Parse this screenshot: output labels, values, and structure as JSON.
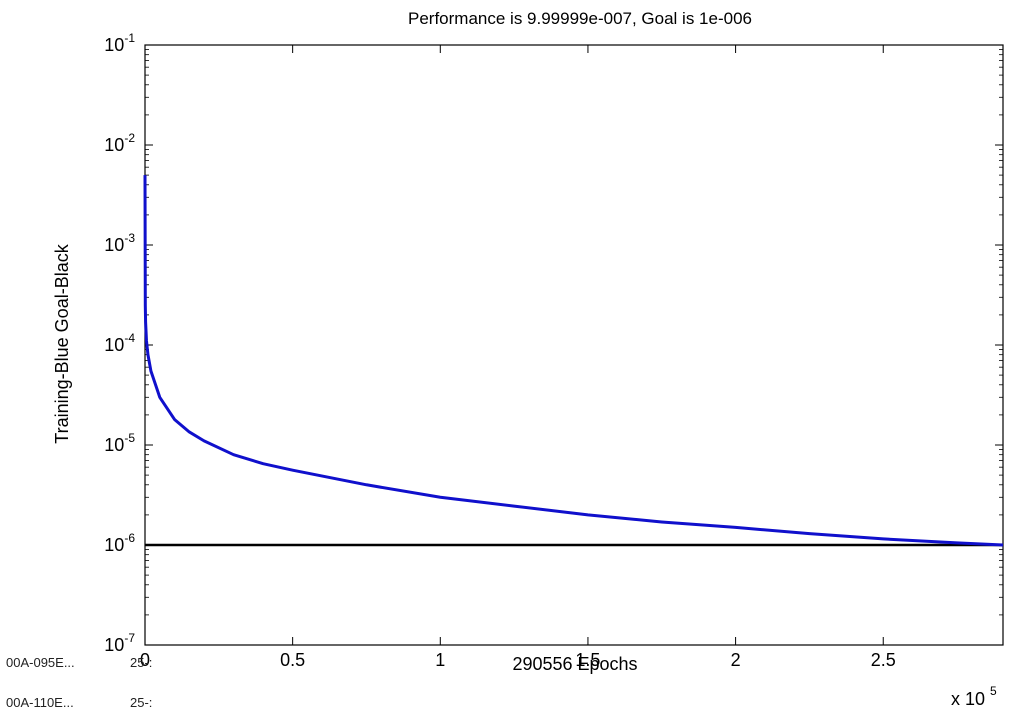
{
  "window": {
    "overlay_col1": [
      "00A-095E...",
      "00A-110E..."
    ],
    "overlay_col2": [
      "25-:",
      "25-:"
    ]
  },
  "chart_data": {
    "type": "line",
    "title": "Performance is 9.99999e-007, Goal is 1e-006",
    "xlabel": "290556 Epochs",
    "ylabel": "Training-Blue  Goal-Black",
    "x_scale_multiplier": {
      "base": "x 10",
      "exponent": "5"
    },
    "xlim": [
      0,
      2.90556
    ],
    "ylim": [
      1e-07,
      0.1
    ],
    "y_scale": "log",
    "grid": false,
    "x_ticks": [
      {
        "value": 0,
        "label": "0"
      },
      {
        "value": 0.5,
        "label": "0.5"
      },
      {
        "value": 1,
        "label": "1"
      },
      {
        "value": 1.5,
        "label": "1.5"
      },
      {
        "value": 2,
        "label": "2"
      },
      {
        "value": 2.5,
        "label": "2.5"
      }
    ],
    "y_ticks": [
      {
        "value": 1e-07,
        "base": "10",
        "exp": "-7"
      },
      {
        "value": 1e-06,
        "base": "10",
        "exp": "-6"
      },
      {
        "value": 1e-05,
        "base": "10",
        "exp": "-5"
      },
      {
        "value": 0.0001,
        "base": "10",
        "exp": "-4"
      },
      {
        "value": 0.001,
        "base": "10",
        "exp": "-3"
      },
      {
        "value": 0.01,
        "base": "10",
        "exp": "-2"
      },
      {
        "value": 0.1,
        "base": "10",
        "exp": "-1"
      }
    ],
    "series": [
      {
        "color": "#1010cc",
        "x": [
          0,
          0.001,
          0.002,
          0.005,
          0.01,
          0.02,
          0.05,
          0.1,
          0.15,
          0.2,
          0.3,
          0.4,
          0.5,
          0.75,
          1.0,
          1.25,
          1.5,
          1.75,
          2.0,
          2.25,
          2.5,
          2.75,
          2.90556
        ],
        "y": [
          0.005,
          0.00025,
          0.00017,
          0.00011,
          8e-05,
          5.5e-05,
          3e-05,
          1.8e-05,
          1.35e-05,
          1.1e-05,
          8e-06,
          6.5e-06,
          5.6e-06,
          4e-06,
          3e-06,
          2.45e-06,
          2e-06,
          1.7e-06,
          1.5e-06,
          1.3e-06,
          1.15e-06,
          1.05e-06,
          9.99999e-07
        ]
      },
      {
        "color": "#000000",
        "x": [
          0,
          2.90556
        ],
        "y": [
          1e-06,
          1e-06
        ]
      }
    ]
  }
}
